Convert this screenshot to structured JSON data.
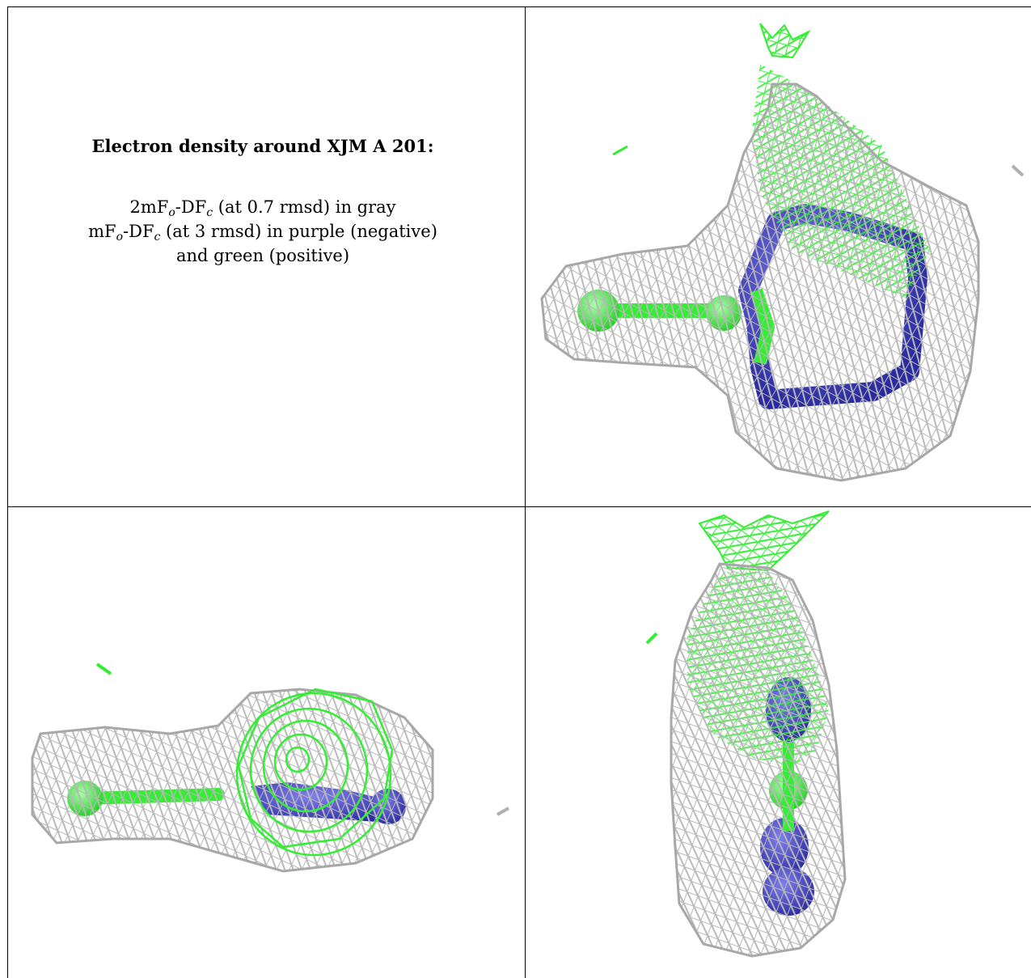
{
  "caption": {
    "title": "Electron density around XJM A 201:",
    "map1_prefix": "2mF",
    "map1_sub_o": "o",
    "map1_mid": "-DF",
    "map1_sub_c": "c",
    "map1_suffix": " (at 0.7 rmsd) in gray",
    "map2_prefix": "mF",
    "map2_sub_o": "o",
    "map2_mid": "-DF",
    "map2_sub_c": "c",
    "map2_suffix": " (at 3 rmsd) in purple (negative)",
    "map2_cont": "and green (positive)"
  },
  "colors": {
    "mesh_gray": "#b5b5b5",
    "positive_green": "#33ee33",
    "negative_purple": "#4040c0",
    "grid_line": "#000000"
  },
  "panels": [
    {
      "name": "view-top-right"
    },
    {
      "name": "view-bottom-left"
    },
    {
      "name": "view-bottom-right"
    }
  ]
}
